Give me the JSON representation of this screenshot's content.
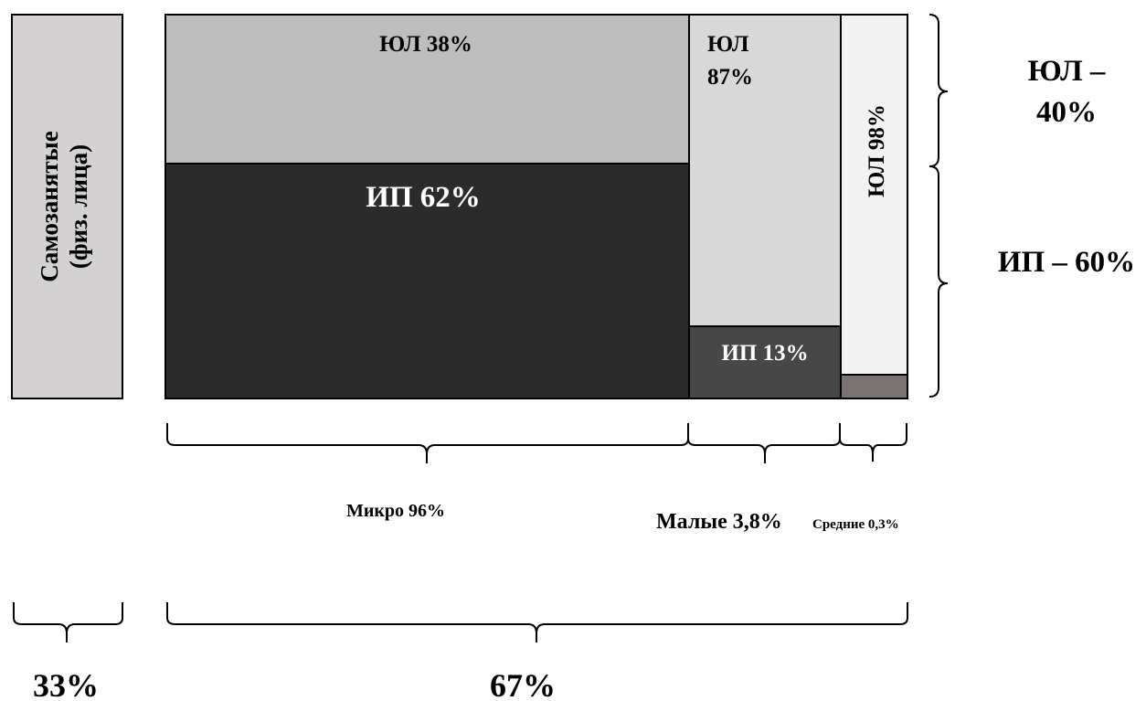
{
  "self_employed": {
    "line1": "Самозанятые",
    "line2": "(физ. лица)"
  },
  "segments": {
    "micro": {
      "yul": "ЮЛ 38%",
      "ip": "ИП 62%",
      "label": "Микро 96%"
    },
    "small": {
      "yul_line1": "ЮЛ",
      "yul_line2": "87%",
      "ip": "ИП 13%",
      "label": "Малые 3,8%"
    },
    "medium": {
      "yul": "ЮЛ 98%",
      "label": "Средние 0,3%"
    }
  },
  "totals": {
    "yul_line1": "ЮЛ –",
    "yul_line2": "40%",
    "ip": "ИП – 60%"
  },
  "shares": {
    "self_employed": "33%",
    "business": "67%"
  },
  "colors": {
    "self_employed": "#d3d1d2",
    "micro_yul": "#bdbdbd",
    "micro_ip": "#2b2b2b",
    "small_yul": "#d8d8d8",
    "small_ip": "#474747",
    "medium_yul": "#f2f2f2",
    "medium_ip": "#7a7372"
  }
}
